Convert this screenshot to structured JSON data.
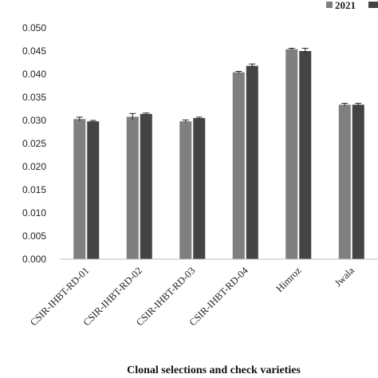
{
  "chart_data": {
    "type": "bar",
    "categories": [
      "CSIR-IHBT-RD-01",
      "CSIR-IHBT-RD-02",
      "CSIR-IHBT-RD-03",
      "CSIR-IHBT-RD-04",
      "Himroz",
      "Jwala"
    ],
    "series": [
      {
        "name": "2021",
        "color": "#7f7f7f",
        "values": [
          0.0303,
          0.0308,
          0.0298,
          0.0404,
          0.0454,
          0.0334
        ],
        "errors": [
          0.0004,
          0.0007,
          0.0003,
          0.0002,
          0.0002,
          0.0003
        ]
      },
      {
        "name": "",
        "color": "#444444",
        "values": [
          0.0298,
          0.0314,
          0.0305,
          0.0418,
          0.045,
          0.0334
        ],
        "errors": [
          0.0002,
          0.0002,
          0.0002,
          0.0004,
          0.0006,
          0.0003
        ]
      }
    ],
    "yticks": [
      "0.000",
      "0.005",
      "0.010",
      "0.015",
      "0.020",
      "0.025",
      "0.030",
      "0.035",
      "0.040",
      "0.045",
      "0.050"
    ],
    "ylim": [
      0,
      0.05
    ],
    "xlabel": "Clonal selections and check varieties",
    "ylabel": "",
    "grid": false,
    "legend_position": "top-right"
  }
}
